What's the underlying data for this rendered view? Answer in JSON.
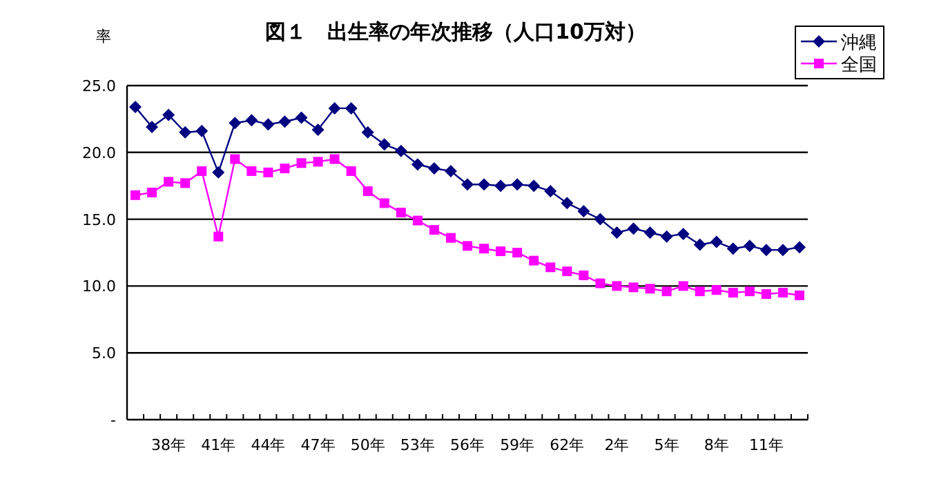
{
  "chart_data": {
    "type": "line",
    "title": "図１　出生率の年次推移（人口10万対）",
    "ylabel": "率",
    "categories": [
      null,
      null,
      "38年",
      null,
      null,
      "41年",
      null,
      null,
      "44年",
      null,
      null,
      "47年",
      null,
      null,
      "50年",
      null,
      null,
      "53年",
      null,
      null,
      "56年",
      null,
      null,
      "59年",
      null,
      null,
      "62年",
      null,
      null,
      "2年",
      null,
      null,
      "5年",
      null,
      null,
      "8年",
      null,
      null,
      "11年",
      null,
      null
    ],
    "series": [
      {
        "name": "沖縄",
        "color": "#000080",
        "marker": "diamond",
        "values": [
          23.4,
          21.9,
          22.8,
          21.5,
          21.6,
          18.5,
          22.2,
          22.4,
          22.1,
          22.3,
          22.6,
          21.7,
          23.3,
          23.3,
          21.5,
          20.6,
          20.1,
          19.1,
          18.8,
          18.6,
          17.6,
          17.6,
          17.5,
          17.6,
          17.5,
          17.1,
          16.2,
          15.6,
          15.0,
          14.0,
          14.3,
          14.0,
          13.7,
          13.9,
          13.1,
          13.3,
          12.8,
          13.0,
          12.7,
          12.7,
          12.9
        ]
      },
      {
        "name": "全国",
        "color": "#ff00ff",
        "marker": "square",
        "values": [
          16.8,
          17.0,
          17.8,
          17.7,
          18.6,
          13.7,
          19.5,
          18.6,
          18.5,
          18.8,
          19.2,
          19.3,
          19.5,
          18.6,
          17.1,
          16.2,
          15.5,
          14.9,
          14.2,
          13.6,
          13.0,
          12.8,
          12.6,
          12.5,
          11.9,
          11.4,
          11.1,
          10.8,
          10.2,
          10.0,
          9.9,
          9.8,
          9.6,
          10.0,
          9.6,
          9.7,
          9.5,
          9.6,
          9.4,
          9.5,
          9.3
        ]
      }
    ],
    "ylim": [
      0,
      25
    ],
    "yticks": [
      {
        "value": 0,
        "label": "-"
      },
      {
        "value": 5,
        "label": "5.0"
      },
      {
        "value": 10,
        "label": "10.0"
      },
      {
        "value": 15,
        "label": "15.0"
      },
      {
        "value": 20,
        "label": "20.0"
      },
      {
        "value": 25,
        "label": "25.0"
      }
    ],
    "grid": "y",
    "legend": "top right"
  }
}
